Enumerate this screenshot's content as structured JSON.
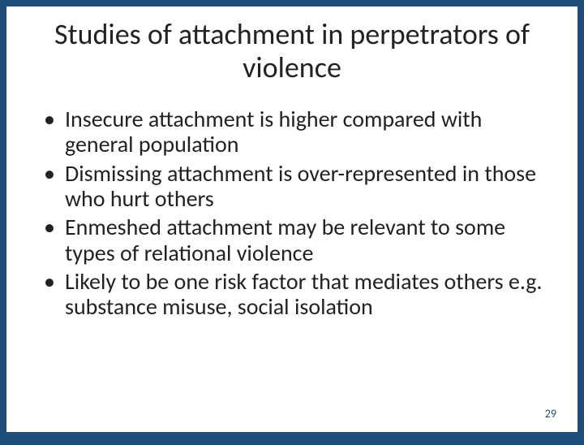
{
  "slide": {
    "title": "Studies of attachment in perpetrators of violence",
    "bullets": [
      "Insecure attachment is higher compared with general population",
      "Dismissing attachment is over-represented in those who hurt others",
      "Enmeshed attachment may be relevant to some types of relational violence",
      "Likely to be one risk factor  that mediates others e.g. substance misuse, social isolation"
    ],
    "page_number": "29",
    "colors": {
      "background": "#1f4e79",
      "content_background": "#ffffff",
      "text": "#222222",
      "page_number": "#1f4e79"
    },
    "typography": {
      "title_fontsize": 36,
      "bullet_fontsize": 28,
      "page_number_fontsize": 14,
      "font_family": "Calibri"
    }
  }
}
